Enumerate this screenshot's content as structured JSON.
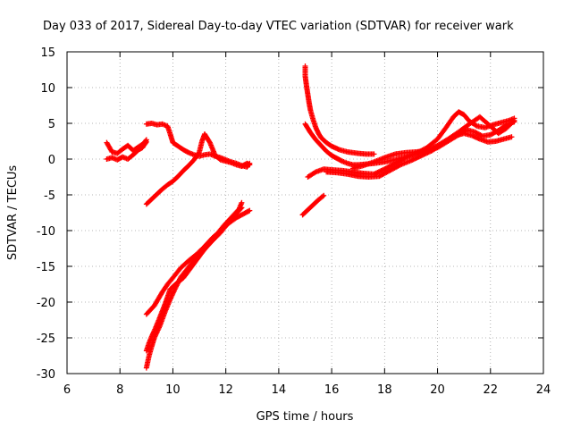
{
  "chart_data": {
    "type": "scatter",
    "title": "Day 033 of 2017, Sidereal Day-to-day VTEC variation (SDTVAR) for receiver wark",
    "xlabel": "GPS time / hours",
    "ylabel": "SDTVAR / TECUs",
    "xlim": [
      6,
      24
    ],
    "ylim": [
      -30,
      15
    ],
    "x_ticks": [
      6,
      8,
      10,
      12,
      14,
      16,
      18,
      20,
      22,
      24
    ],
    "y_ticks": [
      -30,
      -25,
      -20,
      -15,
      -10,
      -5,
      0,
      5,
      10,
      15
    ],
    "grid": true,
    "marker": "plus",
    "color": "#ff0000",
    "series": [
      {
        "name": "arc-a",
        "x": [
          7.5,
          7.7,
          7.9,
          8.1,
          8.3,
          8.5,
          8.7,
          8.85,
          8.9,
          9.0
        ],
        "y": [
          0.0,
          0.2,
          -0.1,
          0.3,
          0.0,
          0.6,
          1.3,
          1.6,
          1.9,
          2.4
        ]
      },
      {
        "name": "arc-b",
        "x": [
          7.5,
          7.7,
          7.9,
          8.1,
          8.3,
          8.5,
          8.7,
          8.9,
          9.0
        ],
        "y": [
          2.3,
          1.0,
          0.8,
          1.4,
          1.9,
          1.2,
          1.7,
          2.2,
          2.7
        ]
      },
      {
        "name": "arc-c",
        "x": [
          9.0,
          9.2,
          9.4,
          9.6,
          9.8,
          9.9,
          10.0,
          10.2,
          10.4,
          10.6,
          10.8,
          11.0,
          11.2,
          11.4,
          11.6,
          11.8,
          12.0,
          12.2,
          12.4,
          12.6,
          12.8,
          12.9
        ],
        "y": [
          4.9,
          5.0,
          4.8,
          4.9,
          4.6,
          3.5,
          2.3,
          1.8,
          1.3,
          0.9,
          0.6,
          0.4,
          0.6,
          0.7,
          0.4,
          0.2,
          -0.1,
          -0.4,
          -0.6,
          -0.9,
          -1.1,
          -0.6
        ]
      },
      {
        "name": "arc-d",
        "x": [
          9.0,
          9.2,
          9.4,
          9.6,
          9.8,
          10.0,
          10.2,
          10.4,
          10.6,
          10.8,
          11.0,
          11.1,
          11.2,
          11.4,
          11.6,
          11.8,
          12.0,
          12.2,
          12.4,
          12.6,
          12.8,
          12.9
        ],
        "y": [
          -6.3,
          -5.6,
          -4.9,
          -4.2,
          -3.6,
          -3.1,
          -2.4,
          -1.6,
          -0.9,
          -0.1,
          1.0,
          2.5,
          3.5,
          2.3,
          0.5,
          -0.1,
          -0.3,
          -0.5,
          -0.8,
          -1.0,
          -0.6,
          -0.8
        ]
      },
      {
        "name": "arc-e",
        "x": [
          9.0,
          9.3,
          9.6,
          9.8,
          10.0,
          10.3,
          10.6,
          10.9,
          11.2,
          11.5,
          11.8,
          12.1,
          12.4,
          12.7,
          12.9
        ],
        "y": [
          -21.7,
          -20.5,
          -18.6,
          -17.5,
          -16.6,
          -15.2,
          -14.2,
          -13.3,
          -12.2,
          -11.0,
          -10.0,
          -9.0,
          -8.2,
          -7.6,
          -7.2
        ]
      },
      {
        "name": "arc-f",
        "x": [
          9.0,
          9.1,
          9.2,
          9.3,
          9.5,
          9.7,
          9.9,
          10.1,
          10.4,
          10.7,
          11.0,
          11.3,
          11.6,
          11.9,
          12.2,
          12.5,
          12.6
        ],
        "y": [
          -26.8,
          -25.7,
          -24.8,
          -24.0,
          -22.2,
          -20.3,
          -18.2,
          -17.5,
          -16.6,
          -15.1,
          -13.6,
          -12.1,
          -10.8,
          -9.4,
          -8.2,
          -7.0,
          -6.1
        ]
      },
      {
        "name": "arc-g",
        "x": [
          9.0,
          9.1,
          9.2,
          9.3,
          9.5,
          9.7,
          9.9,
          10.1,
          10.3,
          10.6,
          10.9,
          11.2,
          11.5,
          11.8,
          12.1,
          12.4,
          12.6
        ],
        "y": [
          -29.2,
          -27.5,
          -26.2,
          -25.0,
          -23.4,
          -21.4,
          -19.6,
          -18.0,
          -16.5,
          -15.1,
          -13.7,
          -12.6,
          -11.4,
          -10.3,
          -8.9,
          -7.6,
          -6.8
        ]
      },
      {
        "name": "arc-h",
        "x": [
          15.0,
          15.0,
          15.05,
          15.1,
          15.15,
          15.2,
          15.3,
          15.4,
          15.5,
          15.6,
          15.8,
          16.0,
          16.3,
          16.6,
          17.0,
          17.3,
          17.6
        ],
        "y": [
          13.0,
          11.6,
          10.2,
          9.0,
          7.8,
          6.8,
          5.5,
          4.4,
          3.6,
          3.0,
          2.3,
          1.8,
          1.3,
          1.0,
          0.8,
          0.7,
          0.7
        ]
      },
      {
        "name": "arc-i",
        "x": [
          15.0,
          15.2,
          15.4,
          15.6,
          15.8,
          16.0,
          16.2,
          16.4,
          16.6,
          16.8,
          17.0,
          17.3,
          17.6,
          18.0,
          18.4,
          18.8,
          19.2,
          19.6,
          20.0,
          20.3,
          20.6,
          20.8,
          21.0,
          21.2,
          21.5,
          21.8,
          22.1,
          22.4,
          22.7,
          22.9
        ],
        "y": [
          4.9,
          3.7,
          2.7,
          1.9,
          1.1,
          0.5,
          0.1,
          -0.3,
          -0.6,
          -0.8,
          -0.8,
          -0.7,
          -0.6,
          -0.4,
          -0.1,
          0.3,
          0.8,
          1.6,
          2.8,
          4.3,
          5.9,
          6.6,
          6.2,
          5.3,
          4.6,
          4.4,
          4.8,
          5.1,
          5.4,
          5.7
        ]
      },
      {
        "name": "arc-j",
        "x": [
          15.1,
          15.4,
          15.7,
          16.0,
          16.4,
          16.8,
          17.2,
          17.6,
          18.0,
          18.4,
          18.8,
          19.2,
          19.6,
          20.0,
          20.4,
          20.8,
          21.1,
          21.4,
          21.7,
          22.0,
          22.3,
          22.6,
          22.9
        ],
        "y": [
          -2.5,
          -1.8,
          -1.4,
          -1.5,
          -1.6,
          -1.8,
          -2.0,
          -2.1,
          -1.4,
          -0.6,
          0.2,
          0.8,
          1.1,
          1.6,
          2.5,
          3.4,
          4.1,
          3.8,
          3.2,
          3.4,
          4.0,
          4.8,
          5.2
        ]
      },
      {
        "name": "arc-k",
        "x": [
          15.8,
          16.2,
          16.6,
          17.0,
          17.4,
          17.8,
          18.2,
          18.6,
          19.0,
          19.4,
          19.8,
          20.2,
          20.6,
          21.0,
          21.3,
          21.6,
          21.9,
          22.2,
          22.5,
          22.8
        ],
        "y": [
          -1.8,
          -1.9,
          -2.1,
          -2.4,
          -2.5,
          -2.4,
          -1.6,
          -0.8,
          -0.2,
          0.5,
          1.2,
          2.2,
          3.2,
          3.6,
          3.3,
          2.8,
          2.4,
          2.5,
          2.8,
          3.1
        ]
      },
      {
        "name": "arc-l",
        "x": [
          16.8,
          17.2,
          17.6,
          18.0,
          18.4,
          18.8,
          19.2,
          19.6,
          20.0,
          20.4,
          20.8,
          21.2,
          21.6,
          22.0,
          22.3,
          22.6,
          22.9
        ],
        "y": [
          -1.3,
          -0.9,
          -0.4,
          0.2,
          0.7,
          0.9,
          1.0,
          1.2,
          1.9,
          2.8,
          3.8,
          4.9,
          5.9,
          4.6,
          3.6,
          4.3,
          5.4
        ]
      },
      {
        "name": "arc-m",
        "x": [
          14.9,
          15.1,
          15.3,
          15.5,
          15.7
        ],
        "y": [
          -7.8,
          -7.1,
          -6.4,
          -5.7,
          -5.1
        ]
      }
    ]
  }
}
